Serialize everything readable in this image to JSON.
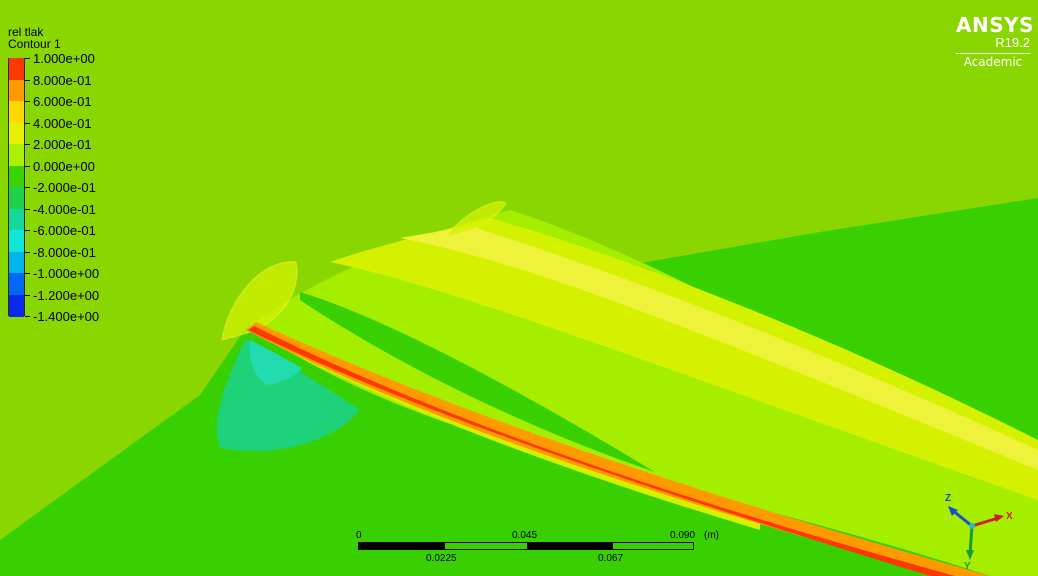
{
  "legend": {
    "variable": "rel tlak",
    "contour_name": "Contour 1",
    "levels": [
      "1.000e+00",
      "8.000e-01",
      "6.000e-01",
      "4.000e-01",
      "2.000e-01",
      "0.000e+00",
      "-2.000e-01",
      "-4.000e-01",
      "-6.000e-01",
      "-8.000e-01",
      "-1.000e+00",
      "-1.200e+00",
      "-1.400e+00"
    ],
    "band_colors": [
      "#ff3800",
      "#ff9a00",
      "#ffd800",
      "#e6f000",
      "#aaf000",
      "#3cd400",
      "#1ed24a",
      "#16d89a",
      "#10e6d8",
      "#00b4ec",
      "#0068f2",
      "#0a2aee"
    ]
  },
  "logo": {
    "name": "ANSYS",
    "version": "R19.2",
    "edition": "Academic"
  },
  "scale_bar": {
    "top_labels": [
      "0",
      "0.045",
      "0.090"
    ],
    "unit": "(m)",
    "bottom_labels": [
      "0.0225",
      "0.067"
    ]
  },
  "triad": {
    "axes": [
      "Z",
      "X",
      "Y"
    ],
    "colors": {
      "z": "#1a4fd0",
      "x": "#d02020",
      "y": "#1a9a40",
      "center": "#20c0c0"
    }
  },
  "field_colors": {
    "background": "#8ad600",
    "lower_region": "#38d000",
    "upper_band": "#a6ee00",
    "light_band": "#d4f200",
    "yellow_band": "#eef23a",
    "low_pressure": "#1ed27a",
    "suction_peak": "#22dcb0",
    "edge_orange": "#ff9a00",
    "edge_red": "#ff3800"
  }
}
